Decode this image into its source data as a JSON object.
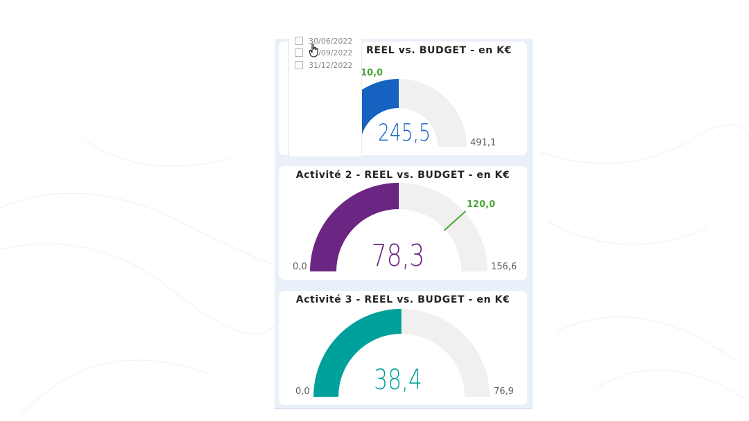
{
  "slicer": {
    "items": [
      {
        "label": "30/06/2022",
        "checked": false
      },
      {
        "label": "30/09/2022",
        "checked": false
      },
      {
        "label": "31/12/2022",
        "checked": false
      }
    ]
  },
  "gauges": [
    {
      "title": "REEL vs. BUDGET - en K€",
      "value": "245,5",
      "min": "",
      "max": "491,1",
      "target": "10,0",
      "value_num": 245.5,
      "max_num": 491.1,
      "target_num": 10.0,
      "color": "#1562c0"
    },
    {
      "title": "Activité 2 - REEL vs. BUDGET - en K€",
      "value": "78,3",
      "min": "0,0",
      "max": "156,6",
      "target": "120,0",
      "value_num": 78.3,
      "max_num": 156.6,
      "target_num": 120.0,
      "color": "#6b2582"
    },
    {
      "title": "Activité 3 - REEL vs. BUDGET - en K€",
      "value": "38,4",
      "min": "0,0",
      "max": "76,9",
      "target": "",
      "value_num": 38.4,
      "max_num": 76.9,
      "color": "#01a19b"
    }
  ],
  "colors": {
    "track": "#f1f0ef",
    "target_line": "#4ba63a",
    "panel_bg": "#e9f0fa"
  },
  "icons": {
    "cursor": "hand-pointer-icon"
  }
}
